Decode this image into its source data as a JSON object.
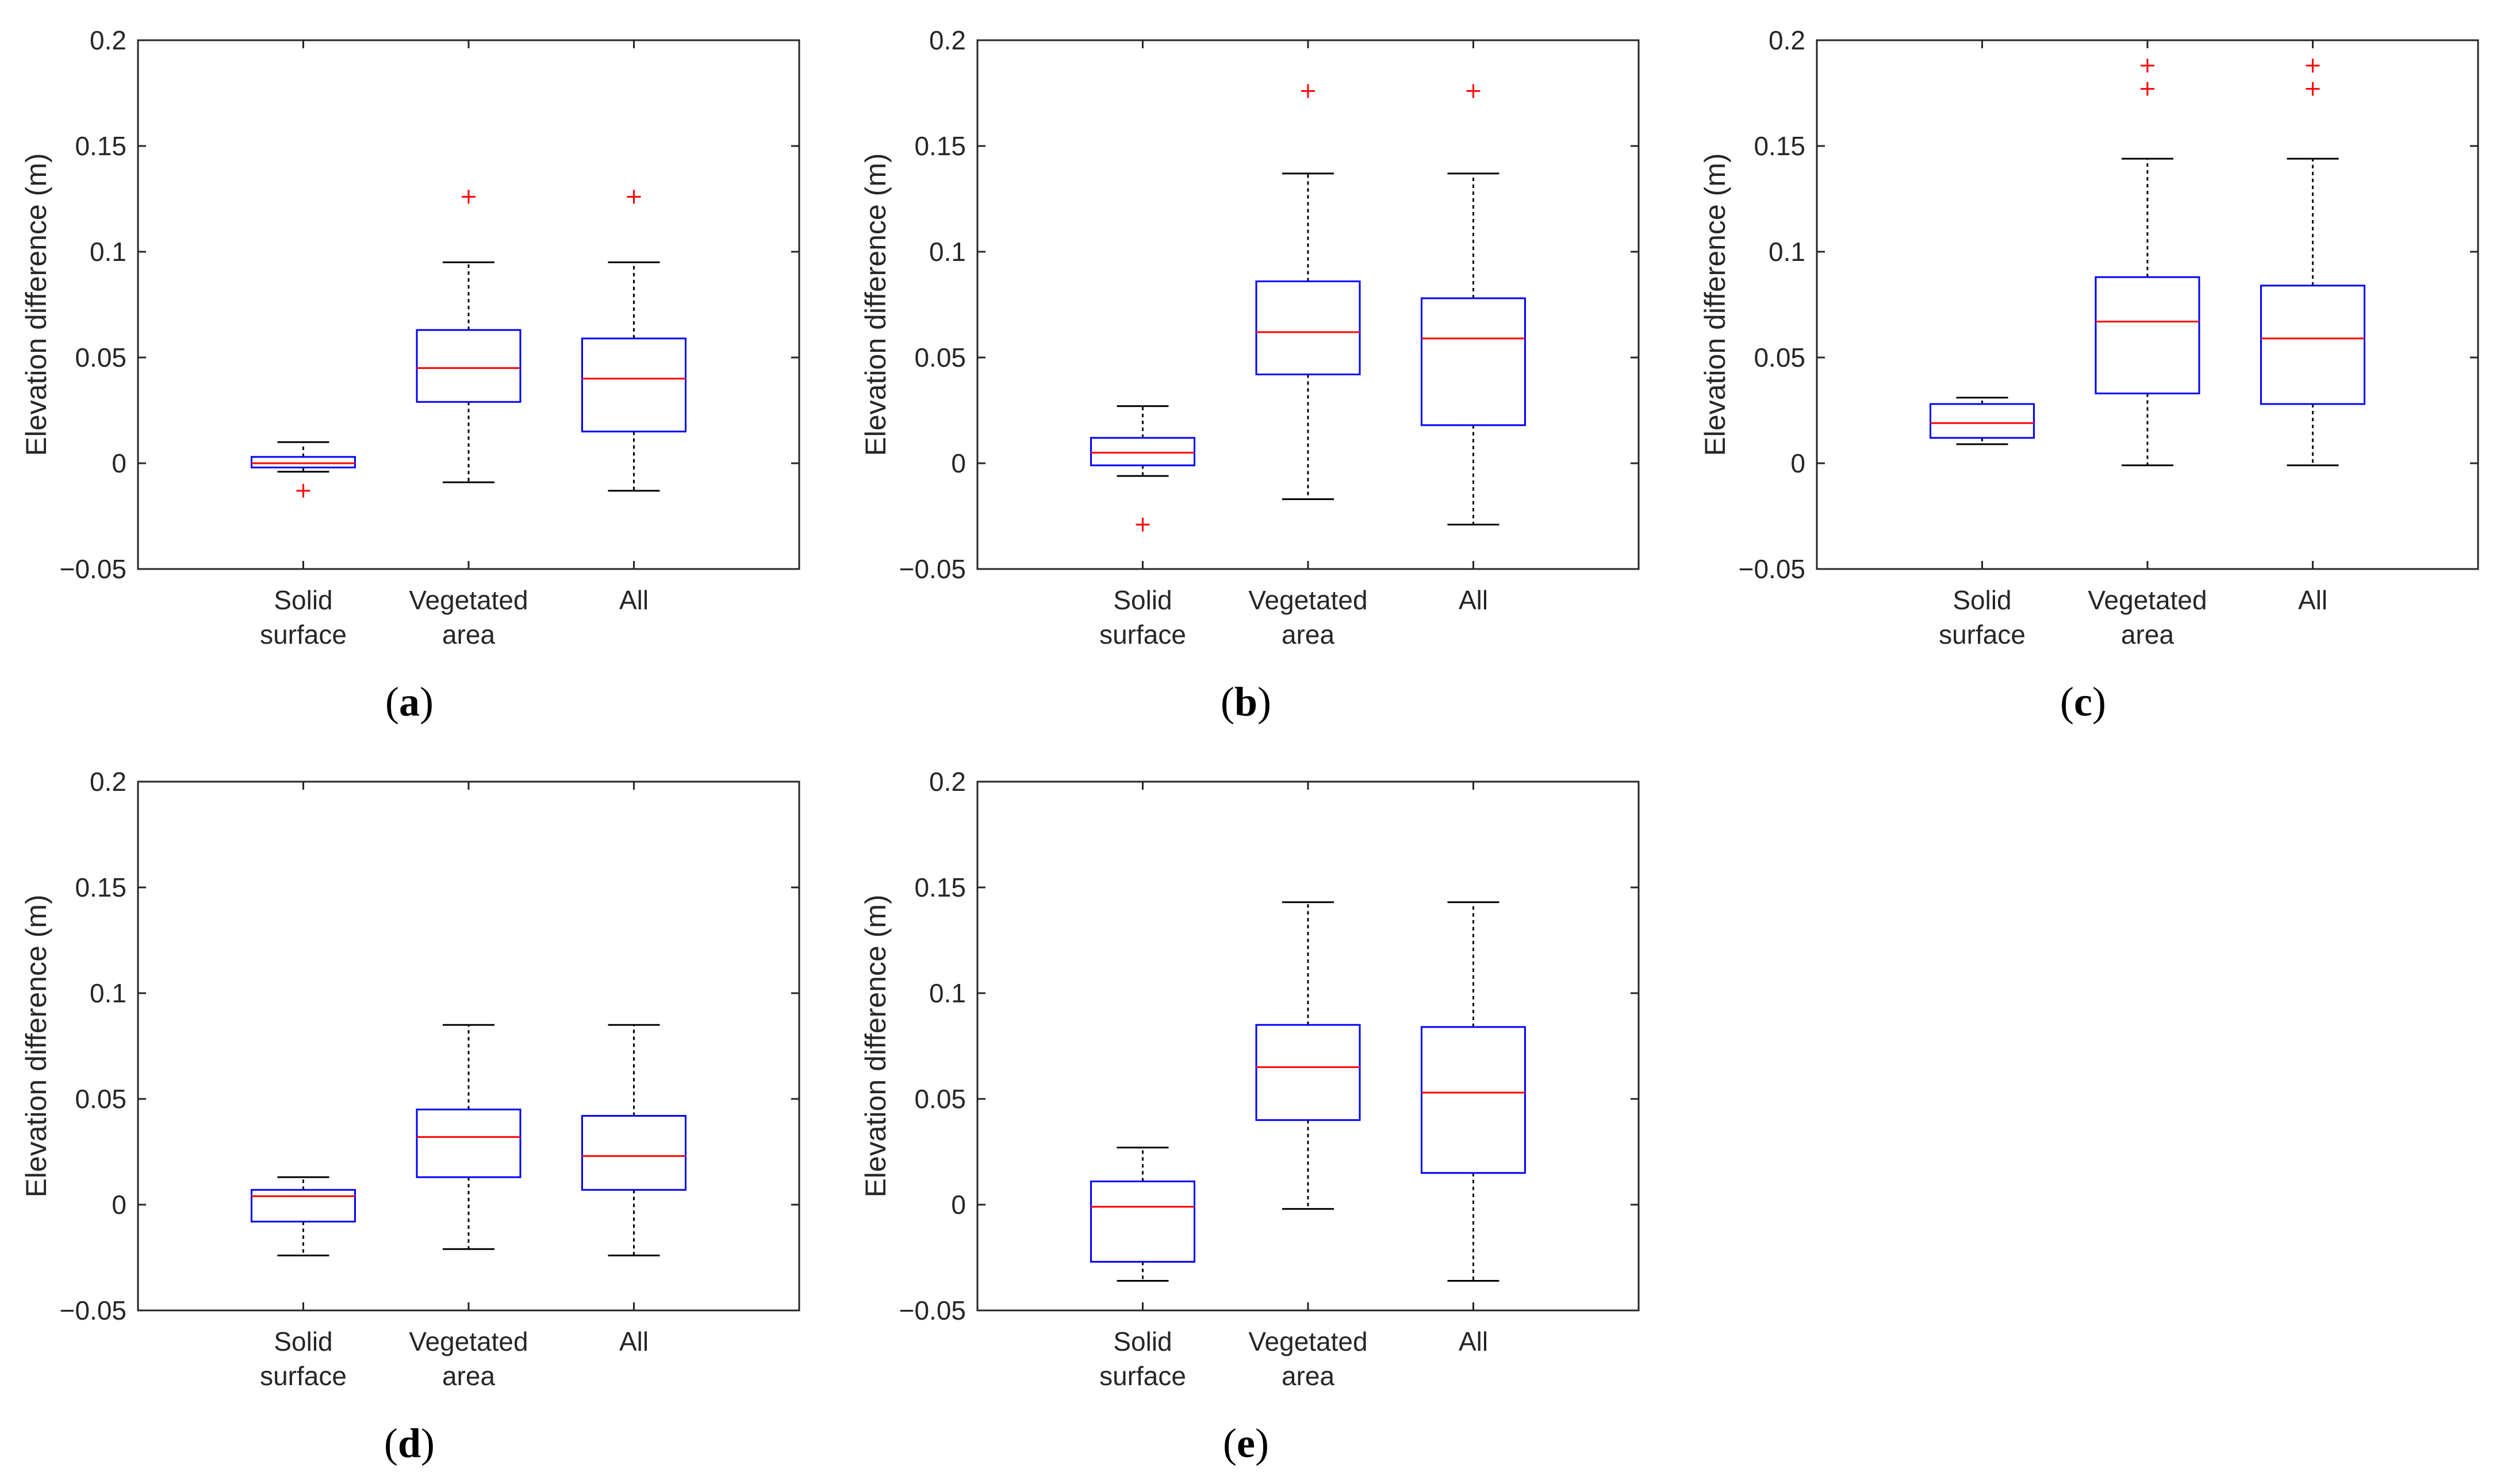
{
  "chart_data": [
    {
      "type": "box",
      "panel": "a",
      "ylabel": "Elevation difference (m)",
      "ylim": [
        -0.05,
        0.2
      ],
      "yticks": [
        "-0.05",
        "0",
        "0.05",
        "0.1",
        "0.15",
        "0.2"
      ],
      "categories": [
        [
          "Solid",
          "surface"
        ],
        [
          "Vegetated",
          "area"
        ],
        [
          "All"
        ]
      ],
      "boxes": [
        {
          "whisker_low": -0.004,
          "q1": -0.002,
          "median": 0.0,
          "q3": 0.003,
          "whisker_high": 0.01,
          "outliers": [
            -0.013
          ]
        },
        {
          "whisker_low": -0.009,
          "q1": 0.029,
          "median": 0.045,
          "q3": 0.063,
          "whisker_high": 0.095,
          "outliers": [
            0.126
          ]
        },
        {
          "whisker_low": -0.013,
          "q1": 0.015,
          "median": 0.04,
          "q3": 0.059,
          "whisker_high": 0.095,
          "outliers": [
            0.126
          ]
        }
      ]
    },
    {
      "type": "box",
      "panel": "b",
      "ylabel": "Elevation difference (m)",
      "ylim": [
        -0.05,
        0.2
      ],
      "yticks": [
        "-0.05",
        "0",
        "0.05",
        "0.1",
        "0.15",
        "0.2"
      ],
      "categories": [
        [
          "Solid",
          "surface"
        ],
        [
          "Vegetated",
          "area"
        ],
        [
          "All"
        ]
      ],
      "boxes": [
        {
          "whisker_low": -0.006,
          "q1": -0.001,
          "median": 0.005,
          "q3": 0.012,
          "whisker_high": 0.027,
          "outliers": [
            -0.029
          ]
        },
        {
          "whisker_low": -0.017,
          "q1": 0.042,
          "median": 0.062,
          "q3": 0.086,
          "whisker_high": 0.137,
          "outliers": [
            0.176
          ]
        },
        {
          "whisker_low": -0.029,
          "q1": 0.018,
          "median": 0.059,
          "q3": 0.078,
          "whisker_high": 0.137,
          "outliers": [
            0.176
          ]
        }
      ]
    },
    {
      "type": "box",
      "panel": "c",
      "ylabel": "Elevation difference (m)",
      "ylim": [
        -0.05,
        0.2
      ],
      "yticks": [
        "-0.05",
        "0",
        "0.05",
        "0.1",
        "0.15",
        "0.2"
      ],
      "categories": [
        [
          "Solid",
          "surface"
        ],
        [
          "Vegetated",
          "area"
        ],
        [
          "All"
        ]
      ],
      "boxes": [
        {
          "whisker_low": 0.009,
          "q1": 0.012,
          "median": 0.019,
          "q3": 0.028,
          "whisker_high": 0.031,
          "outliers": []
        },
        {
          "whisker_low": -0.001,
          "q1": 0.033,
          "median": 0.067,
          "q3": 0.088,
          "whisker_high": 0.144,
          "outliers": [
            0.177,
            0.188
          ]
        },
        {
          "whisker_low": -0.001,
          "q1": 0.028,
          "median": 0.059,
          "q3": 0.084,
          "whisker_high": 0.144,
          "outliers": [
            0.177,
            0.188
          ]
        }
      ]
    },
    {
      "type": "box",
      "panel": "d",
      "ylabel": "Elevation difference (m)",
      "ylim": [
        -0.05,
        0.2
      ],
      "yticks": [
        "-0.05",
        "0",
        "0.05",
        "0.1",
        "0.15",
        "0.2"
      ],
      "categories": [
        [
          "Solid",
          "surface"
        ],
        [
          "Vegetated",
          "area"
        ],
        [
          "All"
        ]
      ],
      "boxes": [
        {
          "whisker_low": -0.024,
          "q1": -0.008,
          "median": 0.004,
          "q3": 0.007,
          "whisker_high": 0.013,
          "outliers": []
        },
        {
          "whisker_low": -0.021,
          "q1": 0.013,
          "median": 0.032,
          "q3": 0.045,
          "whisker_high": 0.085,
          "outliers": []
        },
        {
          "whisker_low": -0.024,
          "q1": 0.007,
          "median": 0.023,
          "q3": 0.042,
          "whisker_high": 0.085,
          "outliers": []
        }
      ]
    },
    {
      "type": "box",
      "panel": "e",
      "ylabel": "Elevation difference (m)",
      "ylim": [
        -0.05,
        0.2
      ],
      "yticks": [
        "-0.05",
        "0",
        "0.05",
        "0.1",
        "0.15",
        "0.2"
      ],
      "categories": [
        [
          "Solid",
          "surface"
        ],
        [
          "Vegetated",
          "area"
        ],
        [
          "All"
        ]
      ],
      "boxes": [
        {
          "whisker_low": -0.036,
          "q1": -0.027,
          "median": -0.001,
          "q3": 0.011,
          "whisker_high": 0.027,
          "outliers": []
        },
        {
          "whisker_low": -0.002,
          "q1": 0.04,
          "median": 0.065,
          "q3": 0.085,
          "whisker_high": 0.143,
          "outliers": []
        },
        {
          "whisker_low": -0.036,
          "q1": 0.015,
          "median": 0.053,
          "q3": 0.084,
          "whisker_high": 0.143,
          "outliers": []
        }
      ]
    }
  ],
  "colors": {
    "box": "#0000ff",
    "median": "#ff0000",
    "whisker": "#000000",
    "outlier": "#ff0000",
    "axis": "#262626"
  },
  "captions": [
    {
      "open": "(",
      "letter": "a",
      "close": ")"
    },
    {
      "open": "(",
      "letter": "b",
      "close": ")"
    },
    {
      "open": "(",
      "letter": "c",
      "close": ")"
    },
    {
      "open": "(",
      "letter": "d",
      "close": ")"
    },
    {
      "open": "(",
      "letter": "e",
      "close": ")"
    }
  ]
}
